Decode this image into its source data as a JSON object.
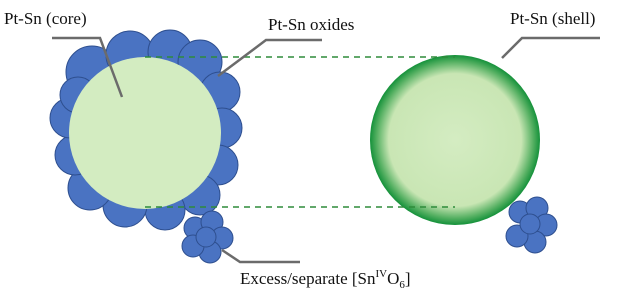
{
  "labels": {
    "core": "Pt-Sn (core)",
    "oxides": "Pt-Sn oxides",
    "shell": "Pt-Sn (shell)",
    "excess": {
      "text": "Excess/separate [Sn",
      "sup": "IV",
      "mid": "O",
      "sub": "6",
      "end": "]"
    }
  }
}
